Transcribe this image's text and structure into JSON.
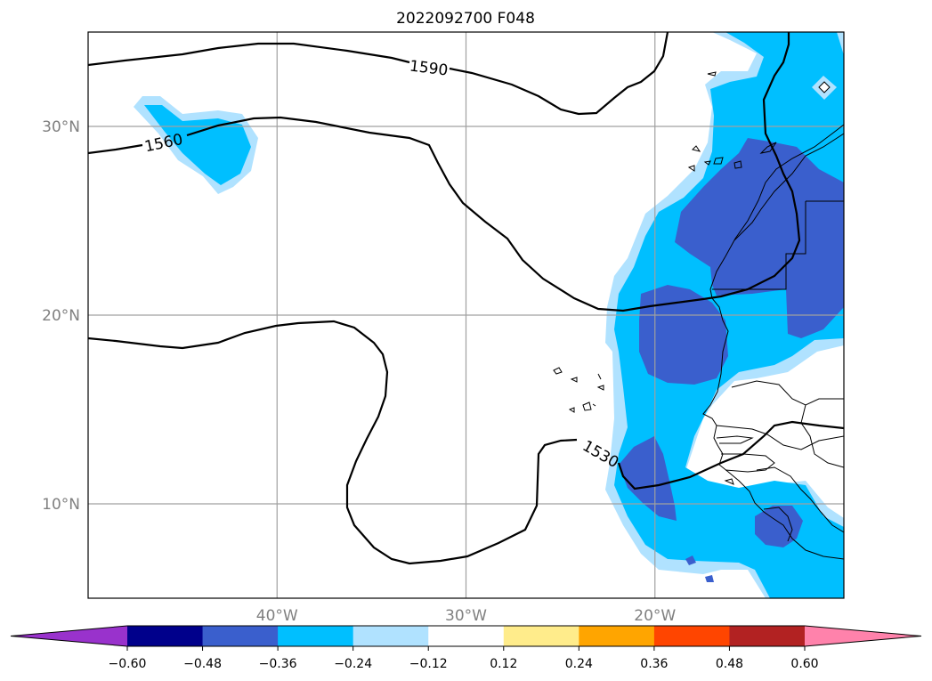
{
  "title": "2022092700 F048",
  "chart_data": {
    "type": "contour",
    "title": "2022092700 F048",
    "lon_range": [
      -50,
      -10
    ],
    "lat_range": [
      5,
      35
    ],
    "lat_ticks": [
      {
        "value": 30,
        "label": "30°N"
      },
      {
        "value": 20,
        "label": "20°N"
      },
      {
        "value": 10,
        "label": "10°N"
      }
    ],
    "lon_ticks": [
      {
        "value": -40,
        "label": "40°W"
      },
      {
        "value": -30,
        "label": "30°W"
      },
      {
        "value": -20,
        "label": "20°W"
      }
    ],
    "grid": true,
    "contour_lines": [
      {
        "value": 1590,
        "label": "1590"
      },
      {
        "value": 1560,
        "label": "1560"
      },
      {
        "value": 1530,
        "label": "1530"
      }
    ],
    "colorbar": {
      "orientation": "horizontal",
      "extend": "both",
      "levels": [
        -0.6,
        -0.48,
        -0.36,
        -0.24,
        -0.12,
        0.12,
        0.24,
        0.36,
        0.48,
        0.6
      ],
      "tick_labels": [
        "−0.60",
        "−0.48",
        "−0.36",
        "−0.24",
        "−0.12",
        "0.12",
        "0.24",
        "0.36",
        "0.48",
        "0.60"
      ],
      "colors": [
        "#9932cc",
        "#00008b",
        "#3a5fcd",
        "#00bfff",
        "#b0e2ff",
        "#ffffff",
        "#ffec8b",
        "#ffa500",
        "#ff4500",
        "#b22222",
        "#ff82ab"
      ]
    }
  }
}
